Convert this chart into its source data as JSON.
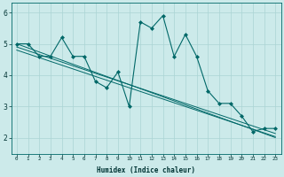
{
  "xlabel": "Humidex (Indice chaleur)",
  "xlim": [
    -0.5,
    23.5
  ],
  "ylim": [
    1.5,
    6.3
  ],
  "yticks": [
    2,
    3,
    4,
    5,
    6
  ],
  "xticks": [
    0,
    1,
    2,
    3,
    4,
    5,
    6,
    7,
    8,
    9,
    10,
    11,
    12,
    13,
    14,
    15,
    16,
    17,
    18,
    19,
    20,
    21,
    22,
    23
  ],
  "bg_color": "#cceaea",
  "line_color": "#006868",
  "grid_color": "#aad4d4",
  "series1": [
    5.0,
    5.0,
    4.6,
    4.6,
    5.2,
    4.6,
    4.6,
    3.8,
    3.6,
    4.1,
    3.0,
    5.7,
    5.5,
    5.9,
    4.6,
    5.3,
    4.6,
    3.5,
    3.1,
    3.1,
    2.7,
    2.2,
    2.3,
    2.3
  ],
  "regression1": [
    5.0,
    4.87,
    4.74,
    4.61,
    4.48,
    4.35,
    4.22,
    4.09,
    3.96,
    3.83,
    3.7,
    3.57,
    3.44,
    3.31,
    3.18,
    3.05,
    2.92,
    2.79,
    2.66,
    2.53,
    2.4,
    2.27,
    2.14,
    2.01
  ],
  "regression2": [
    4.9,
    4.78,
    4.66,
    4.54,
    4.42,
    4.3,
    4.18,
    4.06,
    3.94,
    3.82,
    3.7,
    3.58,
    3.46,
    3.34,
    3.22,
    3.1,
    2.98,
    2.86,
    2.74,
    2.62,
    2.5,
    2.38,
    2.26,
    2.14
  ],
  "regression3": [
    4.8,
    4.68,
    4.56,
    4.44,
    4.32,
    4.2,
    4.08,
    3.96,
    3.84,
    3.72,
    3.6,
    3.48,
    3.36,
    3.24,
    3.12,
    3.0,
    2.88,
    2.76,
    2.64,
    2.52,
    2.4,
    2.28,
    2.16,
    2.04
  ]
}
